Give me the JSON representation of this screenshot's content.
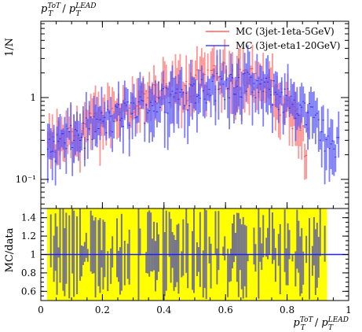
{
  "chart_data": {
    "type": "histogram-ratio",
    "x_range": [
      0,
      1
    ],
    "x_ticks": [
      "0",
      "0.2",
      "0.4",
      "0.6",
      "0.8",
      "1"
    ],
    "top_ylabel": "1/N",
    "top_yticks": [
      "10⁻¹",
      "1"
    ],
    "top_title": "p_T^{ToT}/p_T^{LEAD}",
    "bottom_ylabel": "MC/data",
    "bottom_yticks": [
      "1.4",
      "1.2",
      "1",
      "0.8",
      "0.6"
    ],
    "bottom_ylim": [
      0.5,
      1.5
    ],
    "xlabel": "p_T^{ToT}/p_T^{LEAD}",
    "legend_position": "top-right",
    "series": [
      {
        "name": "MC (3jet-1eta-5GeV)",
        "color": "#ff4040",
        "band_color": "#ff7070",
        "x_range": [
          0.02,
          0.87
        ],
        "peak_x": 0.62,
        "values_at_peak": 2.0
      },
      {
        "name": "MC (3jet-eta1-20GeV)",
        "color": "#2020ff",
        "band_color": "#5050ff",
        "x_range": [
          0.02,
          0.97
        ],
        "peak_x": 0.62,
        "values_at_peak": 1.6
      }
    ],
    "ratio_band_colors": {
      "fill": "#ffff00",
      "overlay": "#707090"
    },
    "ratio_reference_value": 1.0
  }
}
